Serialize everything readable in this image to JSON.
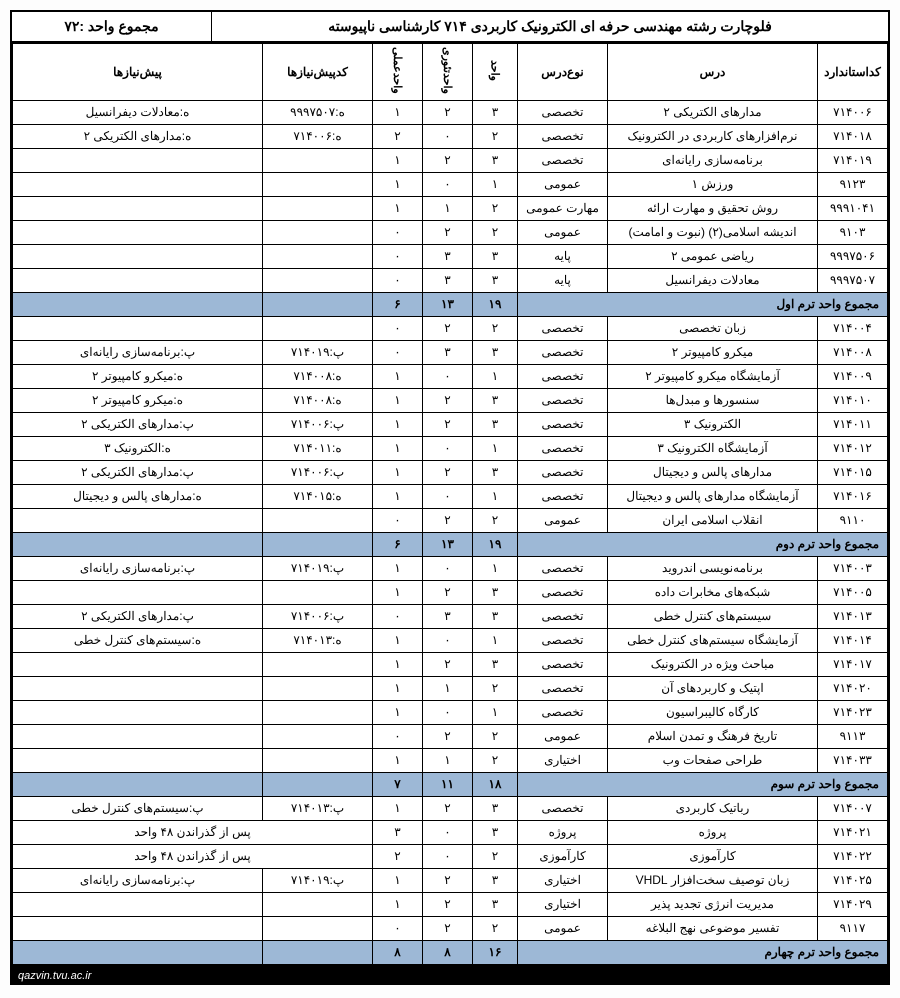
{
  "title": "فلوچارت رشته مهندسی حرفه ای الکترونیک کاربردی ۷۱۴ کارشناسی ناپیوسته",
  "total_label": "مجموع واحد :۷۲",
  "footer": "qazvin.tvu.ac.ir",
  "headers": {
    "code": "کداستاندارد",
    "course": "درس",
    "type": "نوع‌درس",
    "unit": "واحد",
    "theory": "واحدتئوری",
    "practical": "واحدعملی",
    "prereq_code": "کدپیش‌نیازها",
    "prereq": "پیش‌نیازها"
  },
  "colors": {
    "sum_bg": "#9db8d6",
    "border": "#000000",
    "footer_bg": "#000000",
    "footer_fg": "#ffffff"
  },
  "terms": [
    {
      "sum_label": "مجموع واحد ترم اول",
      "sum": {
        "unit": "۱۹",
        "theory": "۱۳",
        "practical": "۶"
      },
      "rows": [
        {
          "code": "۷۱۴۰۰۶",
          "course": "مدارهای الکتریکی ۲",
          "type": "تخصصی",
          "unit": "۳",
          "th": "۲",
          "pr": "۱",
          "pcode": "ه:۹۹۹۷۵۰۷",
          "preq": "ه:معادلات دیفرانسیل"
        },
        {
          "code": "۷۱۴۰۱۸",
          "course": "نرم‌افزارهای کاربردی در الکترونیک",
          "type": "تخصصی",
          "unit": "۲",
          "th": "۰",
          "pr": "۲",
          "pcode": "ه:۷۱۴۰۰۶",
          "preq": "ه:مدارهای الکتریکی ۲"
        },
        {
          "code": "۷۱۴۰۱۹",
          "course": "برنامه‌سازی رایانه‌ای",
          "type": "تخصصی",
          "unit": "۳",
          "th": "۲",
          "pr": "۱",
          "pcode": "",
          "preq": ""
        },
        {
          "code": "۹۱۲۳",
          "course": "ورزش ۱",
          "type": "عمومی",
          "unit": "۱",
          "th": "۰",
          "pr": "۱",
          "pcode": "",
          "preq": ""
        },
        {
          "code": "۹۹۹۱۰۴۱",
          "course": "روش تحقیق و مهارت ارائه",
          "type": "مهارت عمومی",
          "unit": "۲",
          "th": "۱",
          "pr": "۱",
          "pcode": "",
          "preq": ""
        },
        {
          "code": "۹۱۰۳",
          "course": "اندیشه اسلامی(۲)  (نبوت و امامت)",
          "type": "عمومی",
          "unit": "۲",
          "th": "۲",
          "pr": "۰",
          "pcode": "",
          "preq": ""
        },
        {
          "code": "۹۹۹۷۵۰۶",
          "course": "ریاضی عمومی ۲",
          "type": "پایه",
          "unit": "۳",
          "th": "۳",
          "pr": "۰",
          "pcode": "",
          "preq": ""
        },
        {
          "code": "۹۹۹۷۵۰۷",
          "course": "معادلات دیفرانسیل",
          "type": "پایه",
          "unit": "۳",
          "th": "۳",
          "pr": "۰",
          "pcode": "",
          "preq": ""
        }
      ]
    },
    {
      "sum_label": "مجموع واحد ترم دوم",
      "sum": {
        "unit": "۱۹",
        "theory": "۱۳",
        "practical": "۶"
      },
      "rows": [
        {
          "code": "۷۱۴۰۰۴",
          "course": "زبان تخصصی",
          "type": "تخصصی",
          "unit": "۲",
          "th": "۲",
          "pr": "۰",
          "pcode": "",
          "preq": ""
        },
        {
          "code": "۷۱۴۰۰۸",
          "course": "میکرو کامپیوتر ۲",
          "type": "تخصصی",
          "unit": "۳",
          "th": "۳",
          "pr": "۰",
          "pcode": "پ:۷۱۴۰۱۹",
          "preq": "پ:برنامه‌سازی رایانه‌ای"
        },
        {
          "code": "۷۱۴۰۰۹",
          "course": "آزمایشگاه میکرو کامپیوتر ۲",
          "type": "تخصصی",
          "unit": "۱",
          "th": "۰",
          "pr": "۱",
          "pcode": "ه:۷۱۴۰۰۸",
          "preq": "ه:میکرو کامپیوتر ۲"
        },
        {
          "code": "۷۱۴۰۱۰",
          "course": "سنسورها و مبدل‌ها",
          "type": "تخصصی",
          "unit": "۳",
          "th": "۲",
          "pr": "۱",
          "pcode": "ه:۷۱۴۰۰۸",
          "preq": "ه:میکرو کامپیوتر ۲"
        },
        {
          "code": "۷۱۴۰۱۱",
          "course": "الکترونیک ۳",
          "type": "تخصصی",
          "unit": "۳",
          "th": "۲",
          "pr": "۱",
          "pcode": "پ:۷۱۴۰۰۶",
          "preq": "پ:مدارهای الکتریکی ۲"
        },
        {
          "code": "۷۱۴۰۱۲",
          "course": "آزمایشگاه الکترونیک ۳",
          "type": "تخصصی",
          "unit": "۱",
          "th": "۰",
          "pr": "۱",
          "pcode": "ه:۷۱۴۰۱۱",
          "preq": "ه:الکترونیک ۳"
        },
        {
          "code": "۷۱۴۰۱۵",
          "course": "مدارهای پالس و دیجیتال",
          "type": "تخصصی",
          "unit": "۳",
          "th": "۲",
          "pr": "۱",
          "pcode": "پ:۷۱۴۰۰۶",
          "preq": "پ:مدارهای الکتریکی ۲"
        },
        {
          "code": "۷۱۴۰۱۶",
          "course": "آزمایشگاه مدارهای پالس و دیجیتال",
          "type": "تخصصی",
          "unit": "۱",
          "th": "۰",
          "pr": "۱",
          "pcode": "ه:۷۱۴۰۱۵",
          "preq": "ه:مدارهای پالس و دیجیتال"
        },
        {
          "code": "۹۱۱۰",
          "course": "انقلاب اسلامی ایران",
          "type": "عمومی",
          "unit": "۲",
          "th": "۲",
          "pr": "۰",
          "pcode": "",
          "preq": ""
        }
      ]
    },
    {
      "sum_label": "مجموع واحد ترم سوم",
      "sum": {
        "unit": "۱۸",
        "theory": "۱۱",
        "practical": "۷"
      },
      "rows": [
        {
          "code": "۷۱۴۰۰۳",
          "course": "برنامه‌نویسی اندروید",
          "type": "تخصصی",
          "unit": "۱",
          "th": "۰",
          "pr": "۱",
          "pcode": "پ:۷۱۴۰۱۹",
          "preq": "پ:برنامه‌سازی رایانه‌ای"
        },
        {
          "code": "۷۱۴۰۰۵",
          "course": "شبکه‌های مخابرات داده",
          "type": "تخصصی",
          "unit": "۳",
          "th": "۲",
          "pr": "۱",
          "pcode": "",
          "preq": ""
        },
        {
          "code": "۷۱۴۰۱۳",
          "course": "سیستم‌های کنترل خطی",
          "type": "تخصصی",
          "unit": "۳",
          "th": "۳",
          "pr": "۰",
          "pcode": "پ:۷۱۴۰۰۶",
          "preq": "پ:مدارهای الکتریکی ۲"
        },
        {
          "code": "۷۱۴۰۱۴",
          "course": "آزمایشگاه سیستم‌های کنترل خطی",
          "type": "تخصصی",
          "unit": "۱",
          "th": "۰",
          "pr": "۱",
          "pcode": "ه:۷۱۴۰۱۳",
          "preq": "ه:سیستم‌های کنترل خطی"
        },
        {
          "code": "۷۱۴۰۱۷",
          "course": "مباحث ویژه در الکترونیک",
          "type": "تخصصی",
          "unit": "۳",
          "th": "۲",
          "pr": "۱",
          "pcode": "",
          "preq": ""
        },
        {
          "code": "۷۱۴۰۲۰",
          "course": "اپتیک و کاربردهای آن",
          "type": "تخصصی",
          "unit": "۲",
          "th": "۱",
          "pr": "۱",
          "pcode": "",
          "preq": ""
        },
        {
          "code": "۷۱۴۰۲۳",
          "course": "کارگاه کالیبراسیون",
          "type": "تخصصی",
          "unit": "۱",
          "th": "۰",
          "pr": "۱",
          "pcode": "",
          "preq": ""
        },
        {
          "code": "۹۱۱۳",
          "course": "تاریخ فرهنگ و تمدن اسلام",
          "type": "عمومی",
          "unit": "۲",
          "th": "۲",
          "pr": "۰",
          "pcode": "",
          "preq": ""
        },
        {
          "code": "۷۱۴۰۳۳",
          "course": "طراحی صفحات وب",
          "type": "اختیاری",
          "unit": "۲",
          "th": "۱",
          "pr": "۱",
          "pcode": "",
          "preq": ""
        }
      ]
    },
    {
      "sum_label": "مجموع واحد ترم چهارم",
      "sum": {
        "unit": "۱۶",
        "theory": "۸",
        "practical": "۸"
      },
      "rows": [
        {
          "code": "۷۱۴۰۰۷",
          "course": "رباتیک کاربردی",
          "type": "تخصصی",
          "unit": "۳",
          "th": "۲",
          "pr": "۱",
          "pcode": "پ:۷۱۴۰۱۳",
          "preq": "پ:سیستم‌های کنترل خطی"
        },
        {
          "code": "۷۱۴۰۲۱",
          "course": "پروژه",
          "type": "پروژه",
          "unit": "۳",
          "th": "۰",
          "pr": "۳",
          "pcode": "",
          "preq": "پس از گذراندن ۴۸ واحد",
          "span": true
        },
        {
          "code": "۷۱۴۰۲۲",
          "course": "کارآموزی",
          "type": "کارآموزی",
          "unit": "۲",
          "th": "۰",
          "pr": "۲",
          "pcode": "",
          "preq": "پس از گذراندن ۴۸ واحد",
          "span": true
        },
        {
          "code": "۷۱۴۰۲۵",
          "course": "زبان توصیف سخت‌افزار VHDL",
          "type": "اختیاری",
          "unit": "۳",
          "th": "۲",
          "pr": "۱",
          "pcode": "پ:۷۱۴۰۱۹",
          "preq": "پ:برنامه‌سازی رایانه‌ای"
        },
        {
          "code": "۷۱۴۰۲۹",
          "course": "مدیریت انرژی تجدید پذیر",
          "type": "اختیاری",
          "unit": "۳",
          "th": "۲",
          "pr": "۱",
          "pcode": "",
          "preq": ""
        },
        {
          "code": "۹۱۱۷",
          "course": "تفسیر موضوعی نهج البلاغه",
          "type": "عمومی",
          "unit": "۲",
          "th": "۲",
          "pr": "۰",
          "pcode": "",
          "preq": ""
        }
      ]
    }
  ]
}
